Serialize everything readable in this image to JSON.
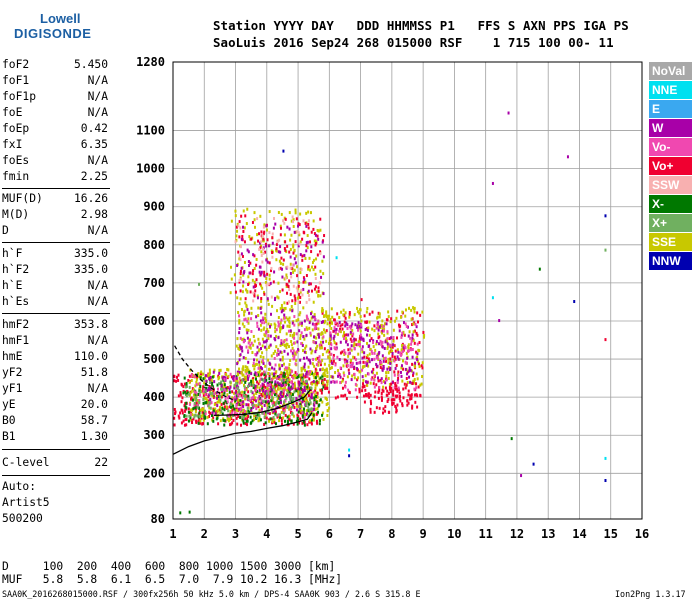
{
  "logo": {
    "line1": "Lowell",
    "line2": "DIGISONDE"
  },
  "header": {
    "line1": "Station YYYY DAY   DDD HHMMSS P1   FFS S AXN PPS IGA PS",
    "line2": "SaoLuis 2016 Sep24 268 015000 RSF    1 715 100 00- 11"
  },
  "params": {
    "group1": [
      {
        "k": "foF2",
        "v": "5.450"
      },
      {
        "k": "foF1",
        "v": "N/A"
      },
      {
        "k": "foF1p",
        "v": "N/A"
      },
      {
        "k": "foE",
        "v": "N/A"
      },
      {
        "k": "foEp",
        "v": "0.42"
      },
      {
        "k": "fxI",
        "v": "6.35"
      },
      {
        "k": "foEs",
        "v": "N/A"
      },
      {
        "k": "fmin",
        "v": "2.25"
      }
    ],
    "group2": [
      {
        "k": "MUF(D)",
        "v": "16.26"
      },
      {
        "k": "M(D)",
        "v": "2.98"
      },
      {
        "k": "D",
        "v": "N/A"
      }
    ],
    "group3": [
      {
        "k": "h`F",
        "v": "335.0"
      },
      {
        "k": "h`F2",
        "v": "335.0"
      },
      {
        "k": "h`E",
        "v": "N/A"
      },
      {
        "k": "h`Es",
        "v": "N/A"
      }
    ],
    "group4": [
      {
        "k": "hmF2",
        "v": "353.8"
      },
      {
        "k": "hmF1",
        "v": "N/A"
      },
      {
        "k": "hmE",
        "v": "110.0"
      },
      {
        "k": "yF2",
        "v": "51.8"
      },
      {
        "k": "yF1",
        "v": "N/A"
      },
      {
        "k": "yE",
        "v": "20.0"
      },
      {
        "k": "B0",
        "v": "58.7"
      },
      {
        "k": "B1",
        "v": "1.30"
      }
    ],
    "clevel": {
      "k": "C-level",
      "v": "22"
    },
    "auto": [
      "Auto:",
      "Artist5",
      "500200"
    ]
  },
  "legend": [
    {
      "label": "NoVal",
      "color": "#a8a8a8"
    },
    {
      "label": "NNE",
      "color": "#00e0f0"
    },
    {
      "label": "E",
      "color": "#3aa8f0"
    },
    {
      "label": "W",
      "color": "#a800a8"
    },
    {
      "label": "Vo-",
      "color": "#f048b0"
    },
    {
      "label": "Vo+",
      "color": "#f00030"
    },
    {
      "label": "SSW",
      "color": "#f8b0b0"
    },
    {
      "label": "X-",
      "color": "#007800"
    },
    {
      "label": "X+",
      "color": "#70b060"
    },
    {
      "label": "SSE",
      "color": "#c8c800"
    },
    {
      "label": "NNW",
      "color": "#0000b0"
    }
  ],
  "bottom": {
    "line1": "D     100  200  400  600  800 1000 1500 3000 [km]",
    "line2": "MUF   5.8  5.8  6.1  6.5  7.0  7.9 10.2 16.3 [MHz]"
  },
  "footer": "SAA0K_2016268015000.RSF / 300fx256h 50 kHz 5.0 km / DPS-4 SAA0K 903 / 2.6 S 315.8 E",
  "version": "Ion2Png 1.3.17",
  "chart_data": {
    "type": "scatter",
    "x_ticks": [
      1,
      2,
      3,
      4,
      5,
      6,
      7,
      8,
      9,
      10,
      11,
      12,
      13,
      14,
      15,
      16
    ],
    "y_ticks": [
      80,
      200,
      300,
      400,
      500,
      600,
      700,
      800,
      900,
      1000,
      1100,
      1280
    ],
    "xlim": [
      1,
      16
    ],
    "ylim": [
      80,
      1280
    ],
    "grid": true,
    "echo_regions": [
      {
        "x": [
          1.0,
          5.6
        ],
        "y": [
          330,
          470
        ],
        "color": "#f00030",
        "n": 420
      },
      {
        "x": [
          1.5,
          6.0
        ],
        "y": [
          340,
          480
        ],
        "color": "#c8c800",
        "n": 420
      },
      {
        "x": [
          1.3,
          5.8
        ],
        "y": [
          330,
          470
        ],
        "color": "#007800",
        "n": 240
      },
      {
        "x": [
          2.0,
          5.5
        ],
        "y": [
          360,
          470
        ],
        "color": "#a800a8",
        "n": 140
      },
      {
        "x": [
          1.5,
          5.5
        ],
        "y": [
          350,
          470
        ],
        "color": "#f048b0",
        "n": 100
      },
      {
        "x": [
          1.3,
          5.5
        ],
        "y": [
          350,
          450
        ],
        "color": "#70b060",
        "n": 120
      },
      {
        "x": [
          5.5,
          9.0
        ],
        "y": [
          400,
          630
        ],
        "color": "#f00030",
        "n": 220
      },
      {
        "x": [
          5.7,
          9.0
        ],
        "y": [
          430,
          640
        ],
        "color": "#c8c800",
        "n": 220
      },
      {
        "x": [
          6.0,
          8.8
        ],
        "y": [
          440,
          600
        ],
        "color": "#a800a8",
        "n": 140
      },
      {
        "x": [
          6.0,
          8.8
        ],
        "y": [
          420,
          600
        ],
        "color": "#f048b0",
        "n": 110
      },
      {
        "x": [
          7.0,
          8.8
        ],
        "y": [
          360,
          440
        ],
        "color": "#f00030",
        "n": 90
      },
      {
        "x": [
          3.0,
          6.0
        ],
        "y": [
          460,
          640
        ],
        "color": "#c8c800",
        "n": 260
      },
      {
        "x": [
          3.0,
          5.8
        ],
        "y": [
          470,
          640
        ],
        "color": "#a800a8",
        "n": 100
      },
      {
        "x": [
          3.0,
          5.8
        ],
        "y": [
          460,
          620
        ],
        "color": "#f048b0",
        "n": 80
      },
      {
        "x": [
          2.8,
          5.8
        ],
        "y": [
          640,
          900
        ],
        "color": "#c8c800",
        "n": 170
      },
      {
        "x": [
          2.9,
          5.8
        ],
        "y": [
          650,
          880
        ],
        "color": "#f00030",
        "n": 130
      },
      {
        "x": [
          3.0,
          5.8
        ],
        "y": [
          660,
          860
        ],
        "color": "#a800a8",
        "n": 70
      },
      {
        "x": [
          2.9,
          5.7
        ],
        "y": [
          650,
          880
        ],
        "color": "#f8b0b0",
        "n": 60
      }
    ],
    "isolated_points": [
      {
        "x": 11.7,
        "y": 1150,
        "color": "#a800a8"
      },
      {
        "x": 13.6,
        "y": 1035,
        "color": "#a800a8"
      },
      {
        "x": 11.2,
        "y": 965,
        "color": "#a800a8"
      },
      {
        "x": 14.8,
        "y": 880,
        "color": "#0000b0"
      },
      {
        "x": 14.8,
        "y": 790,
        "color": "#70b060"
      },
      {
        "x": 12.7,
        "y": 740,
        "color": "#007800"
      },
      {
        "x": 13.8,
        "y": 655,
        "color": "#0000b0"
      },
      {
        "x": 11.2,
        "y": 665,
        "color": "#00e0f0"
      },
      {
        "x": 11.4,
        "y": 605,
        "color": "#a800a8"
      },
      {
        "x": 14.8,
        "y": 555,
        "color": "#f00030"
      },
      {
        "x": 11.8,
        "y": 295,
        "color": "#007800"
      },
      {
        "x": 12.5,
        "y": 228,
        "color": "#0000b0"
      },
      {
        "x": 12.1,
        "y": 198,
        "color": "#a800a8"
      },
      {
        "x": 14.8,
        "y": 243,
        "color": "#00e0f0"
      },
      {
        "x": 14.8,
        "y": 185,
        "color": "#0000b0"
      },
      {
        "x": 6.6,
        "y": 265,
        "color": "#00e0f0"
      },
      {
        "x": 6.6,
        "y": 250,
        "color": "#0000b0"
      },
      {
        "x": 1.2,
        "y": 100,
        "color": "#007800"
      },
      {
        "x": 1.5,
        "y": 102,
        "color": "#007800"
      },
      {
        "x": 4.5,
        "y": 1050,
        "color": "#0000b0"
      },
      {
        "x": 6.2,
        "y": 770,
        "color": "#00e0f0"
      },
      {
        "x": 7.0,
        "y": 660,
        "color": "#f00030"
      },
      {
        "x": 1.8,
        "y": 700,
        "color": "#70b060"
      }
    ],
    "profile_line": {
      "x": [
        1.0,
        1.5,
        2.0,
        2.5,
        3.0,
        3.5,
        4.0,
        4.5,
        5.0,
        5.3,
        5.45
      ],
      "y": [
        250,
        270,
        285,
        295,
        305,
        310,
        318,
        325,
        335,
        342,
        360
      ]
    },
    "dashed_curve": {
      "x": [
        1.05,
        1.3,
        1.6,
        1.9,
        2.2,
        2.6,
        3.0
      ],
      "y": [
        535,
        500,
        470,
        445,
        425,
        405,
        390
      ]
    },
    "fit_curve": {
      "x": [
        2.3,
        2.8,
        3.3,
        3.8,
        4.3,
        4.8,
        5.2,
        5.4
      ],
      "y": [
        352,
        353,
        355,
        360,
        370,
        385,
        400,
        420
      ]
    }
  }
}
